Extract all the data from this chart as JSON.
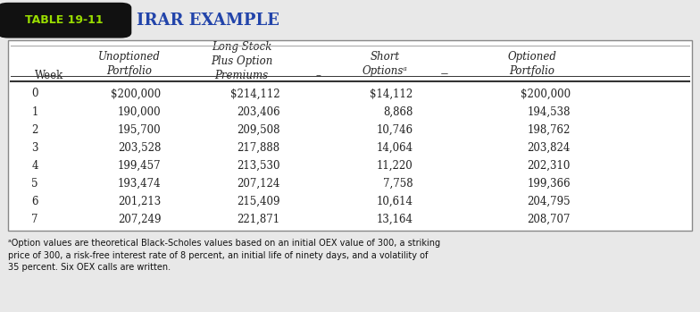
{
  "title_badge": "TABLE 19-11",
  "title_text": "IRAR EXAMPLE",
  "rows": [
    [
      "0",
      "$200,000",
      "$214,112",
      "$14,112",
      "$200,000"
    ],
    [
      "1",
      "190,000",
      "203,406",
      "8,868",
      "194,538"
    ],
    [
      "2",
      "195,700",
      "209,508",
      "10,746",
      "198,762"
    ],
    [
      "3",
      "203,528",
      "217,888",
      "14,064",
      "203,824"
    ],
    [
      "4",
      "199,457",
      "213,530",
      "11,220",
      "202,310"
    ],
    [
      "5",
      "193,474",
      "207,124",
      "7,758",
      "199,366"
    ],
    [
      "6",
      "201,213",
      "215,409",
      "10,614",
      "204,795"
    ],
    [
      "7",
      "207,249",
      "221,871",
      "13,164",
      "208,707"
    ]
  ],
  "footnote": "ᵃOption values are theoretical Black-Scholes values based on an initial OEX value of 300, a striking\nprice of 300, a risk-free interest rate of 8 percent, an initial life of ninety days, and a volatility of\n35 percent. Six OEX calls are written.",
  "badge_bg": "#111111",
  "badge_fg": "#99dd00",
  "title_fg": "#2244aa",
  "table_border_color": "#888888",
  "bg_color": "#e8e8e8",
  "table_bg": "#ffffff",
  "cell_text_color": "#222222",
  "header_text_color": "#222222",
  "footnote_color": "#111111",
  "header_line_color": "#333333",
  "thin_line_color": "#aaaaaa"
}
